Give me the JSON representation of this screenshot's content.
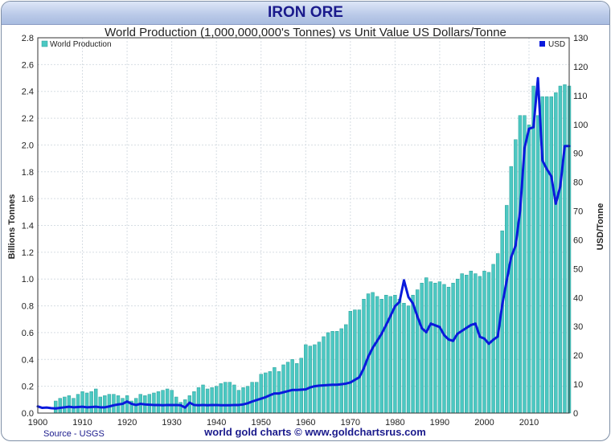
{
  "header": {
    "title": "IRON ORE"
  },
  "chart_data": {
    "type": "bar",
    "title": "World Production (1,000,000,000's Tonnes) vs Unit Value US Dollars/Tonne",
    "ylabel": "Billions Tonnes",
    "y2label": "USD/Tonne",
    "xlim": [
      1900,
      2019
    ],
    "ylim": [
      0,
      2.8
    ],
    "y2lim": [
      0,
      130
    ],
    "xticks": [
      1900,
      1910,
      1920,
      1930,
      1940,
      1950,
      1960,
      1970,
      1980,
      1990,
      2000,
      2010
    ],
    "yticks": [
      0.0,
      0.2,
      0.4,
      0.6,
      0.8,
      1.0,
      1.2,
      1.4,
      1.6,
      1.8,
      2.0,
      2.2,
      2.4,
      2.6,
      2.8
    ],
    "y2ticks": [
      0,
      10,
      20,
      30,
      40,
      50,
      60,
      70,
      80,
      90,
      100,
      110,
      120,
      130
    ],
    "legend": [
      "World Production",
      "USD"
    ],
    "grid": true,
    "series": [
      {
        "name": "World Production",
        "axis": "left",
        "x": [
          1904,
          1905,
          1906,
          1907,
          1908,
          1909,
          1910,
          1911,
          1912,
          1913,
          1914,
          1915,
          1916,
          1917,
          1918,
          1919,
          1920,
          1921,
          1922,
          1923,
          1924,
          1925,
          1926,
          1927,
          1928,
          1929,
          1930,
          1931,
          1932,
          1933,
          1934,
          1935,
          1936,
          1937,
          1938,
          1939,
          1940,
          1941,
          1942,
          1943,
          1944,
          1945,
          1946,
          1947,
          1948,
          1949,
          1950,
          1951,
          1952,
          1953,
          1954,
          1955,
          1956,
          1957,
          1958,
          1959,
          1960,
          1961,
          1962,
          1963,
          1964,
          1965,
          1966,
          1967,
          1968,
          1969,
          1970,
          1971,
          1972,
          1973,
          1974,
          1975,
          1976,
          1977,
          1978,
          1979,
          1980,
          1981,
          1982,
          1983,
          1984,
          1985,
          1986,
          1987,
          1988,
          1989,
          1990,
          1991,
          1992,
          1993,
          1994,
          1995,
          1996,
          1997,
          1998,
          1999,
          2000,
          2001,
          2002,
          2003,
          2004,
          2005,
          2006,
          2007,
          2008,
          2009,
          2010,
          2011,
          2012,
          2013,
          2014,
          2015,
          2016,
          2017,
          2018,
          2019
        ],
        "values": [
          0.09,
          0.11,
          0.12,
          0.13,
          0.11,
          0.14,
          0.16,
          0.15,
          0.16,
          0.18,
          0.12,
          0.13,
          0.14,
          0.14,
          0.13,
          0.11,
          0.13,
          0.09,
          0.11,
          0.14,
          0.13,
          0.14,
          0.15,
          0.16,
          0.17,
          0.18,
          0.17,
          0.12,
          0.08,
          0.1,
          0.13,
          0.16,
          0.19,
          0.21,
          0.18,
          0.19,
          0.2,
          0.22,
          0.23,
          0.23,
          0.21,
          0.17,
          0.19,
          0.2,
          0.23,
          0.23,
          0.29,
          0.3,
          0.31,
          0.34,
          0.31,
          0.36,
          0.38,
          0.4,
          0.37,
          0.41,
          0.51,
          0.5,
          0.51,
          0.53,
          0.57,
          0.6,
          0.61,
          0.61,
          0.63,
          0.66,
          0.76,
          0.77,
          0.77,
          0.85,
          0.89,
          0.9,
          0.87,
          0.85,
          0.88,
          0.87,
          0.88,
          0.85,
          0.82,
          0.8,
          0.88,
          0.92,
          0.97,
          1.01,
          0.98,
          0.97,
          0.98,
          0.96,
          0.94,
          0.97,
          1.0,
          1.04,
          1.03,
          1.06,
          1.04,
          1.02,
          1.06,
          1.05,
          1.11,
          1.19,
          1.36,
          1.55,
          1.84,
          2.04,
          2.22,
          2.22,
          2.15,
          2.44,
          2.22,
          2.36,
          2.36,
          2.36,
          2.39,
          2.44,
          2.45,
          2.44
        ]
      },
      {
        "name": "USD",
        "axis": "right",
        "x": [
          1900,
          1901,
          1902,
          1903,
          1904,
          1905,
          1906,
          1907,
          1908,
          1909,
          1910,
          1911,
          1912,
          1913,
          1914,
          1915,
          1916,
          1917,
          1918,
          1919,
          1920,
          1921,
          1922,
          1923,
          1924,
          1925,
          1926,
          1927,
          1928,
          1929,
          1930,
          1931,
          1932,
          1933,
          1934,
          1935,
          1936,
          1937,
          1938,
          1939,
          1940,
          1941,
          1942,
          1943,
          1944,
          1945,
          1946,
          1947,
          1948,
          1949,
          1950,
          1951,
          1952,
          1953,
          1954,
          1955,
          1956,
          1957,
          1958,
          1959,
          1960,
          1961,
          1962,
          1963,
          1964,
          1965,
          1966,
          1967,
          1968,
          1969,
          1970,
          1971,
          1972,
          1973,
          1974,
          1975,
          1976,
          1977,
          1978,
          1979,
          1980,
          1981,
          1982,
          1983,
          1984,
          1985,
          1986,
          1987,
          1988,
          1989,
          1990,
          1991,
          1992,
          1993,
          1994,
          1995,
          1996,
          1997,
          1998,
          1999,
          2000,
          2001,
          2002,
          2003,
          2004,
          2005,
          2006,
          2007,
          2008,
          2009,
          2010,
          2011,
          2012,
          2013,
          2014,
          2015,
          2016,
          2017,
          2018,
          2019
        ],
        "values": [
          2.3,
          1.8,
          1.9,
          1.7,
          1.6,
          1.8,
          2.0,
          2.2,
          2.0,
          2.1,
          2.2,
          2.0,
          2.1,
          2.2,
          2.0,
          2.0,
          2.3,
          2.7,
          3.0,
          3.2,
          4.0,
          3.2,
          2.8,
          3.2,
          3.0,
          2.9,
          2.8,
          2.8,
          2.7,
          2.8,
          2.8,
          2.8,
          2.7,
          1.9,
          3.6,
          2.8,
          2.7,
          2.8,
          2.7,
          2.8,
          2.8,
          2.7,
          2.7,
          2.7,
          2.8,
          2.8,
          3.0,
          3.4,
          4.0,
          4.5,
          5.0,
          5.5,
          6.2,
          6.8,
          6.8,
          7.2,
          7.6,
          8.0,
          8.0,
          8.1,
          8.2,
          8.9,
          9.3,
          9.5,
          9.6,
          9.7,
          9.8,
          9.8,
          10.0,
          10.2,
          10.6,
          11.5,
          12.4,
          15.5,
          19.5,
          22.6,
          25.0,
          27.5,
          30.5,
          33.7,
          37.0,
          38.5,
          46.0,
          40.2,
          38.0,
          33.5,
          29.4,
          28.0,
          31.0,
          30.4,
          29.8,
          27.0,
          25.5,
          25.0,
          27.5,
          28.5,
          29.5,
          30.5,
          31.0,
          26.4,
          25.8,
          24.0,
          25.4,
          26.5,
          37.5,
          45.8,
          54.0,
          58.0,
          70.0,
          91.8,
          98.5,
          99.0,
          116.0,
          87.5,
          84.5,
          82.0,
          72.5,
          78.5,
          92.5,
          92.5
        ]
      }
    ]
  },
  "footer": {
    "source": "Source - USGS",
    "credit": "world gold charts © www.goldchartsrus.com"
  },
  "colors": {
    "bar": "#4cc8c2",
    "line": "#0a1adc",
    "title": "#1a1a8c"
  }
}
